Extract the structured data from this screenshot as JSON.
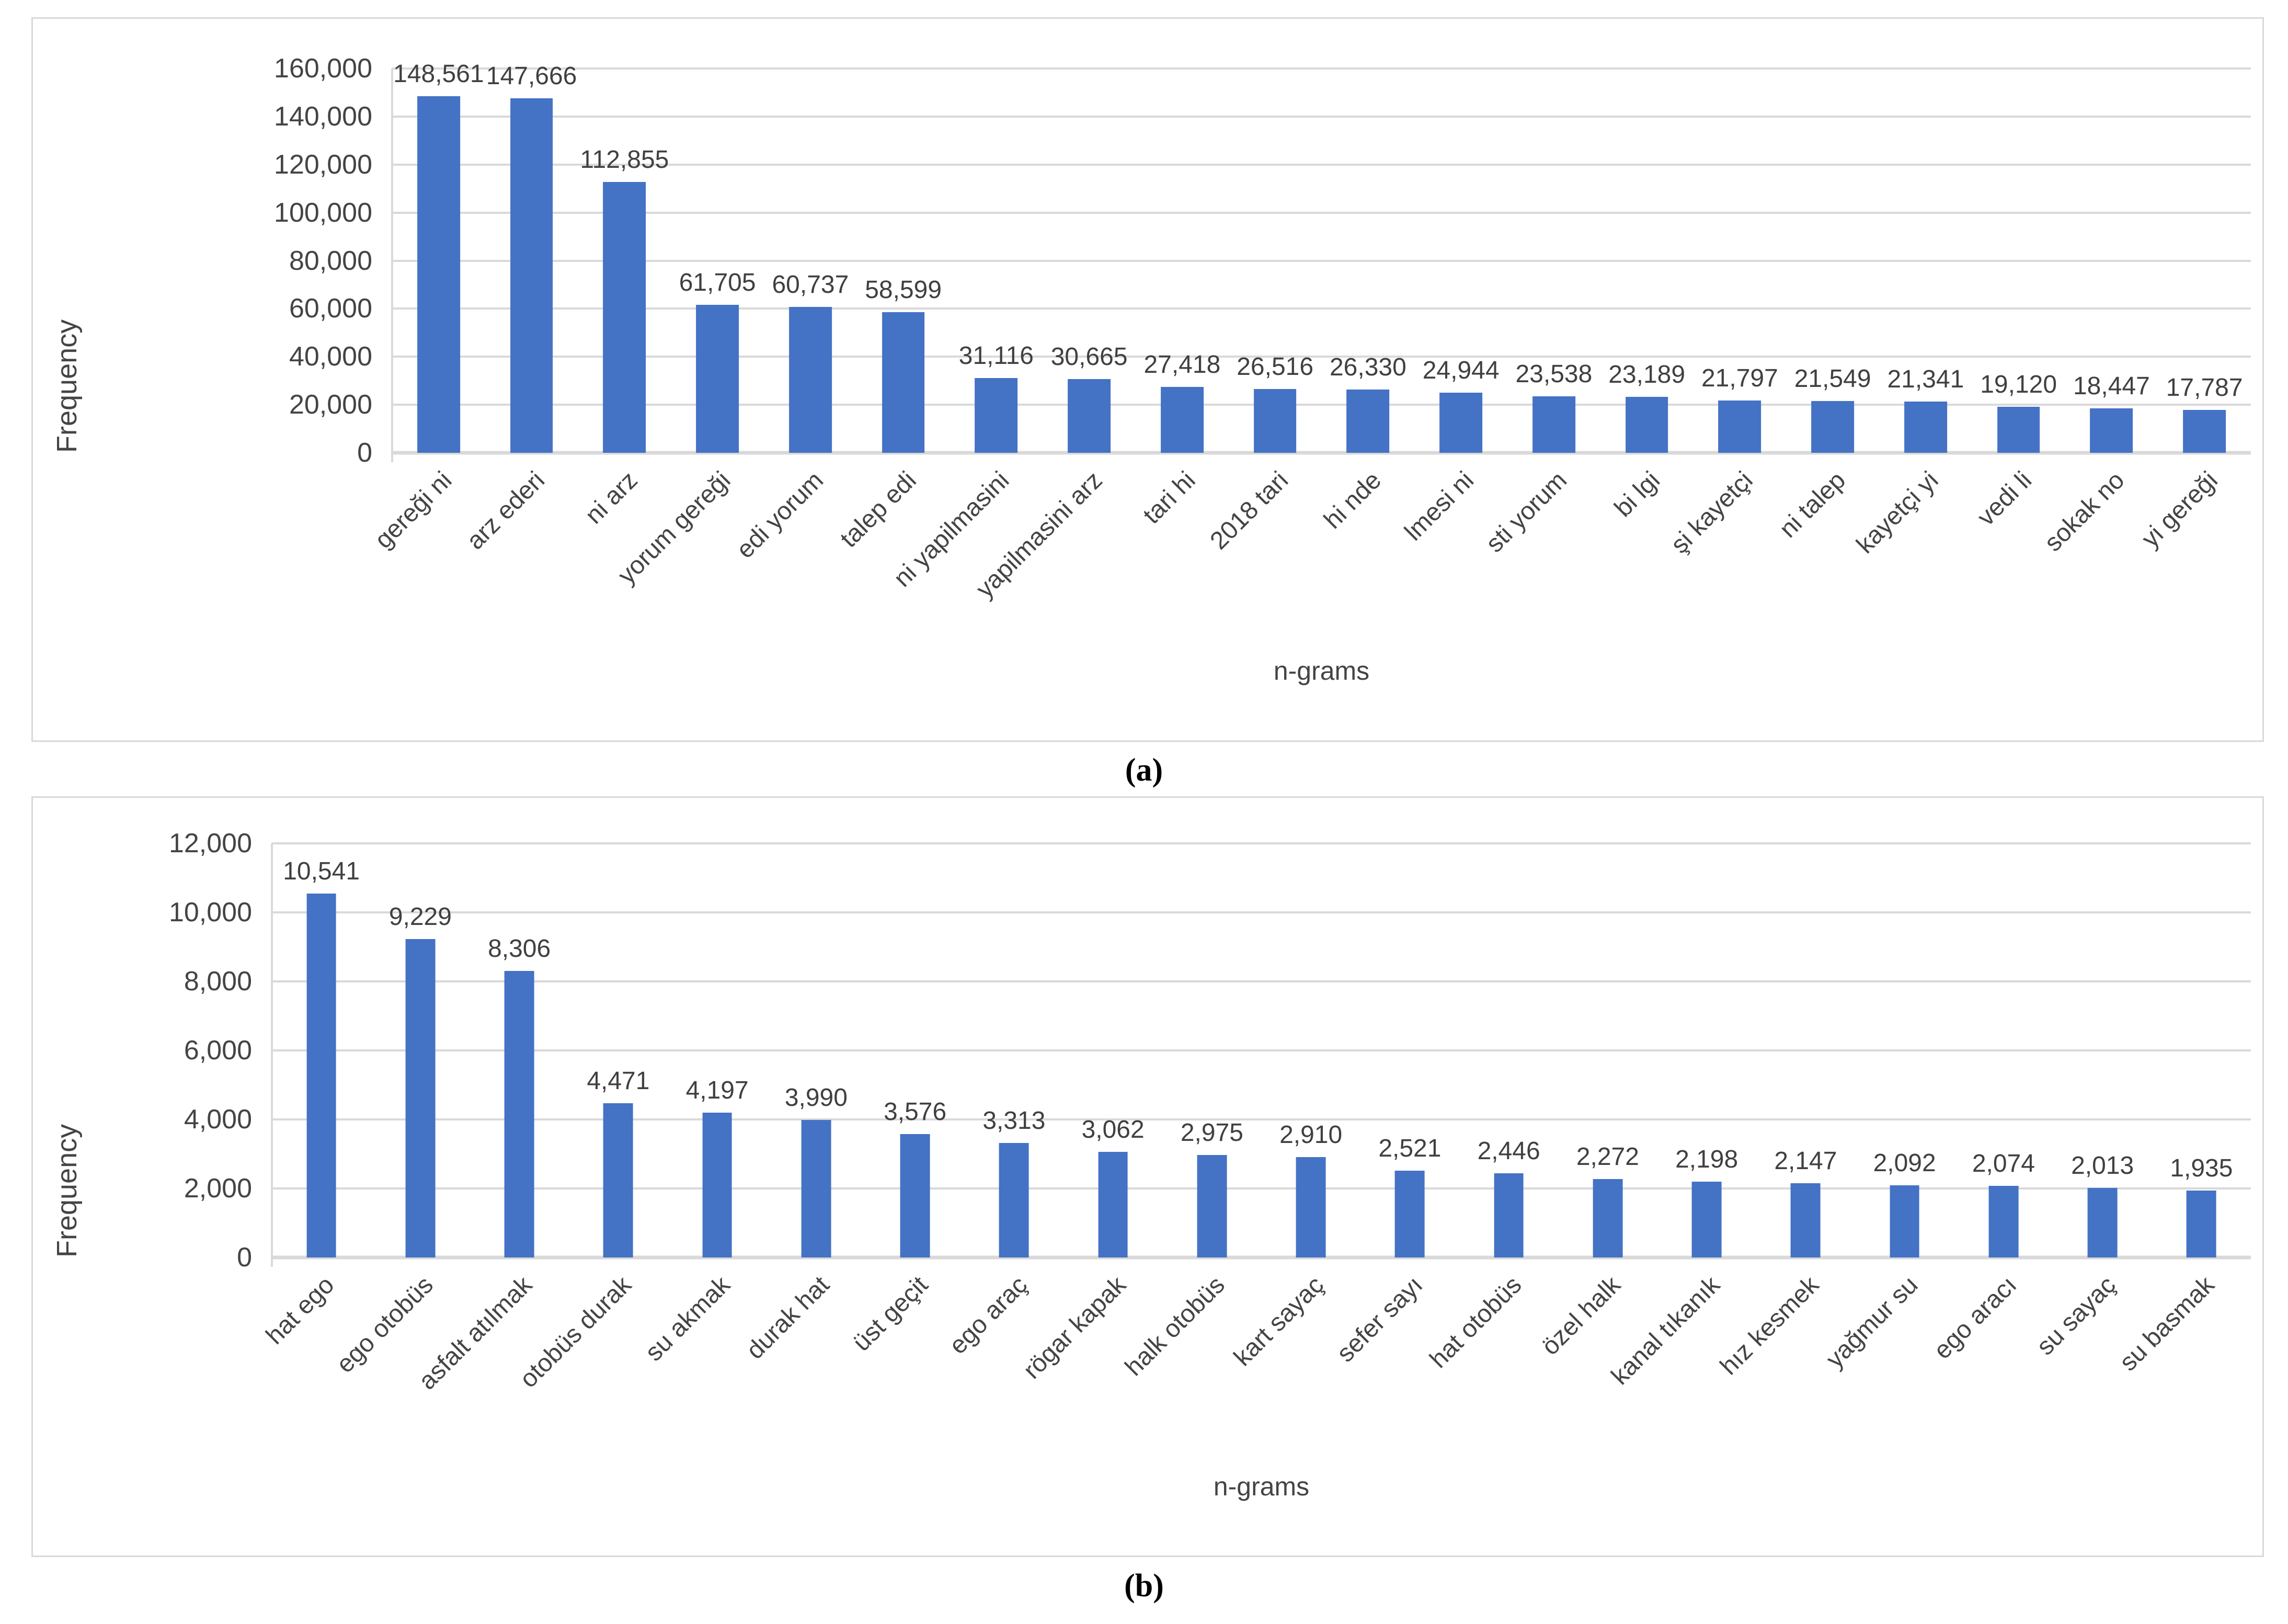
{
  "colors": {
    "bar": "#4472C4",
    "gridline": "#D9D9D9",
    "axis_text": "#444444",
    "data_label_text": "#404040",
    "caption_text": "#000000",
    "panel_border": "#D9D9D9"
  },
  "chart_data": [
    {
      "type": "bar",
      "panel": "a",
      "caption": "(a)",
      "xlabel": "n-grams",
      "ylabel": "Frequency",
      "ylim": [
        0,
        160000
      ],
      "ytick_step": 20000,
      "grid": true,
      "legend": "none",
      "ytick_labels": [
        "0",
        "20,000",
        "40,000",
        "60,000",
        "80,000",
        "100,000",
        "120,000",
        "140,000",
        "160,000"
      ],
      "categories": [
        "gereği ni",
        "arz ederi",
        "ni arz",
        "yorum gereği",
        "edi yorum",
        "talep edi",
        "ni yapilmasini",
        "yapilmasini arz",
        "tari hi",
        "2018 tari",
        "hi nde",
        "lmesi ni",
        "sti yorum",
        "bi lgi",
        "şi kayetçi",
        "ni talep",
        "kayetçi yi",
        "vedi li",
        "sokak no",
        "yi gereği"
      ],
      "values": [
        148561,
        147666,
        112855,
        61705,
        60737,
        58599,
        31116,
        30665,
        27418,
        26516,
        26330,
        24944,
        23538,
        23189,
        21797,
        21549,
        21341,
        19120,
        18447,
        17787
      ],
      "value_labels": [
        "148,561",
        "147,666",
        "112,855",
        "61,705",
        "60,737",
        "58,599",
        "31,116",
        "30,665",
        "27,418",
        "26,516",
        "26,330",
        "24,944",
        "23,538",
        "23,189",
        "21,797",
        "21,549",
        "21,341",
        "19,120",
        "18,447",
        "17,787"
      ]
    },
    {
      "type": "bar",
      "panel": "b",
      "caption": "(b)",
      "xlabel": "n-grams",
      "ylabel": "Frequency",
      "ylim": [
        0,
        12000
      ],
      "ytick_step": 2000,
      "grid": true,
      "legend": "none",
      "ytick_labels": [
        "0",
        "2,000",
        "4,000",
        "6,000",
        "8,000",
        "10,000",
        "12,000"
      ],
      "categories": [
        "hat ego",
        "ego otobüs",
        "asfalt atılmak",
        "otobüs durak",
        "su akmak",
        "durak hat",
        "üst geçit",
        "ego araç",
        "rögar kapak",
        "halk otobüs",
        "kart sayaç",
        "sefer sayı",
        "hat otobüs",
        "özel halk",
        "kanal tıkanık",
        "hız kesmek",
        "yağmur su",
        "ego aracı",
        "su sayaç",
        "su basmak"
      ],
      "values": [
        10541,
        9229,
        8306,
        4471,
        4197,
        3990,
        3576,
        3313,
        3062,
        2975,
        2910,
        2521,
        2446,
        2272,
        2198,
        2147,
        2092,
        2074,
        2013,
        1935
      ],
      "value_labels": [
        "10,541",
        "9,229",
        "8,306",
        "4,471",
        "4,197",
        "3,990",
        "3,576",
        "3,313",
        "3,062",
        "2,975",
        "2,910",
        "2,521",
        "2,446",
        "2,272",
        "2,198",
        "2,147",
        "2,092",
        "2,074",
        "2,013",
        "1,935"
      ]
    }
  ]
}
